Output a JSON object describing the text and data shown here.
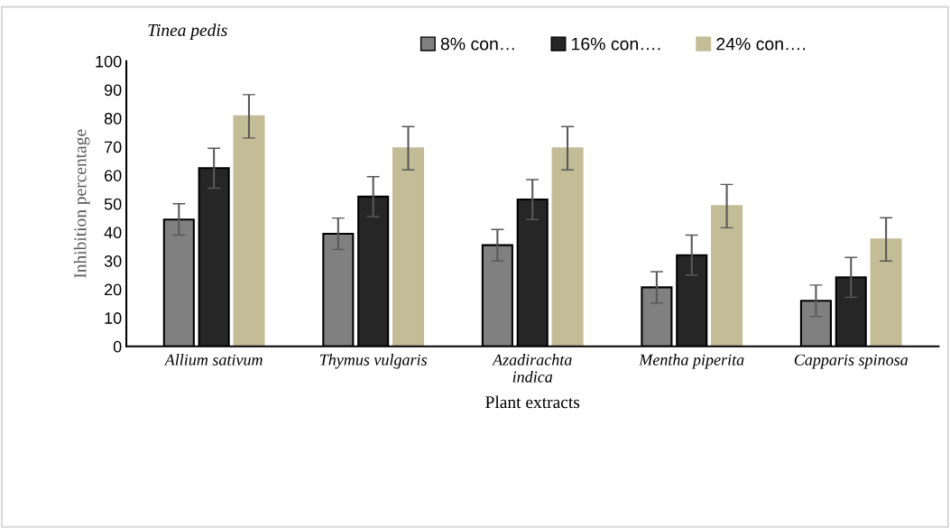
{
  "chart_data": {
    "type": "bar",
    "title": "Tinea pedis",
    "xlabel": "Plant extracts",
    "ylabel": "Inhibition percentage",
    "categories": [
      "Allium sativum",
      "Thymus vulgaris",
      "Azadirachta\nindica",
      "Mentha piperita",
      "Capparis spinosa"
    ],
    "series": [
      {
        "name": "8% con…",
        "color": "#808080",
        "values": [
          44.5,
          39.5,
          35.5,
          20.7,
          16
        ],
        "errors": [
          5.5,
          5.5,
          5.5,
          5.5,
          5.5
        ]
      },
      {
        "name": "16% con….",
        "color": "#262626",
        "values": [
          62.5,
          52.5,
          51.5,
          32,
          24.2
        ],
        "errors": [
          7,
          7,
          7,
          7,
          7
        ]
      },
      {
        "name": "24% con….",
        "color": "#c4bc96",
        "values": [
          80.7,
          69.5,
          69.5,
          49.2,
          37.5
        ],
        "errors": [
          7.6,
          7.6,
          7.6,
          7.6,
          7.6
        ]
      }
    ],
    "ylim": [
      0,
      100
    ],
    "yticks": [
      0,
      10,
      20,
      30,
      40,
      50,
      60,
      70,
      80,
      90,
      100
    ],
    "grid": false,
    "legend": "top"
  }
}
